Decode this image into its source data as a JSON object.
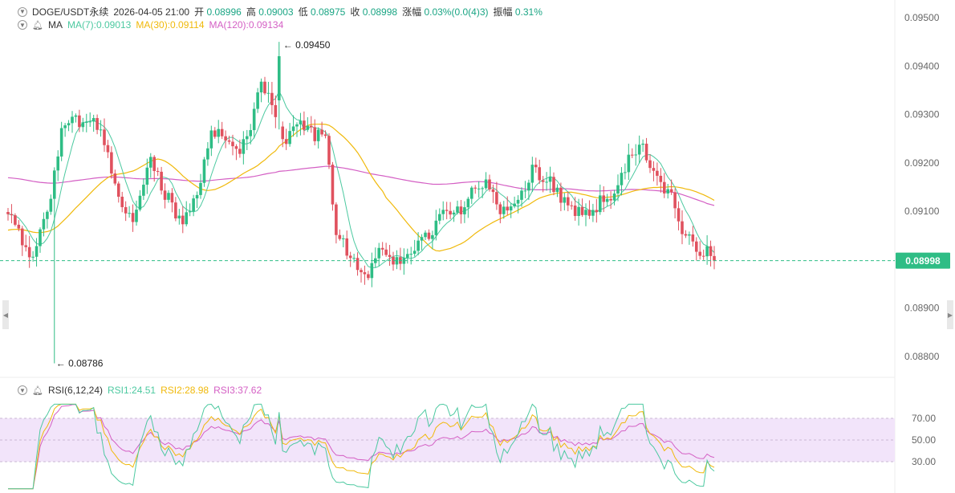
{
  "header": {
    "symbol": "DOGE/USDT永续",
    "datetime": "2026-04-05 21:00",
    "open_label": "开",
    "open": "0.08996",
    "high_label": "高",
    "high": "0.09003",
    "low_label": "低",
    "low": "0.08975",
    "close_label": "收",
    "close": "0.08998",
    "change_label": "涨幅",
    "change": "0.03%(0.0(4)3)",
    "amp_label": "振幅",
    "amp": "0.31%"
  },
  "ma_legend": {
    "name": "MA",
    "ma7": "MA(7):0.09013",
    "ma30": "MA(30):0.09114",
    "ma120": "MA(120):0.09134"
  },
  "rsi_legend": {
    "name": "RSI(6,12,24)",
    "rsi1": "RSI1:24.51",
    "rsi2": "RSI2:28.98",
    "rsi3": "RSI3:37.62"
  },
  "colors": {
    "up": "#2ebd85",
    "down": "#e0515e",
    "ma7": "#4cc9a0",
    "ma30": "#f0b90b",
    "ma120": "#d45fc4",
    "rsi1": "#4cc9a0",
    "rsi2": "#f0b90b",
    "rsi3": "#d45fc4",
    "rsi_band": "#f2e4fa",
    "price_tag": "#2ebd85"
  },
  "chart_data": [
    {
      "type": "candlestick",
      "y_ticks": [
        "0.09500",
        "0.09400",
        "0.09300",
        "0.09200",
        "0.09100",
        "0.09000",
        "0.08900",
        "0.08800"
      ],
      "ylim": [
        0.0876,
        0.0952
      ],
      "current_price": "0.08998",
      "annotations": {
        "high": "0.09450",
        "low": "0.08786"
      },
      "ma_start": {
        "ma30": 0.0906,
        "ma120": 0.0917
      }
    },
    {
      "type": "line",
      "title": "RSI(6,12,24)",
      "y_ticks": [
        "70.00",
        "50.00",
        "30.00"
      ],
      "band": [
        30,
        70
      ],
      "ylim": [
        5,
        75
      ]
    }
  ]
}
